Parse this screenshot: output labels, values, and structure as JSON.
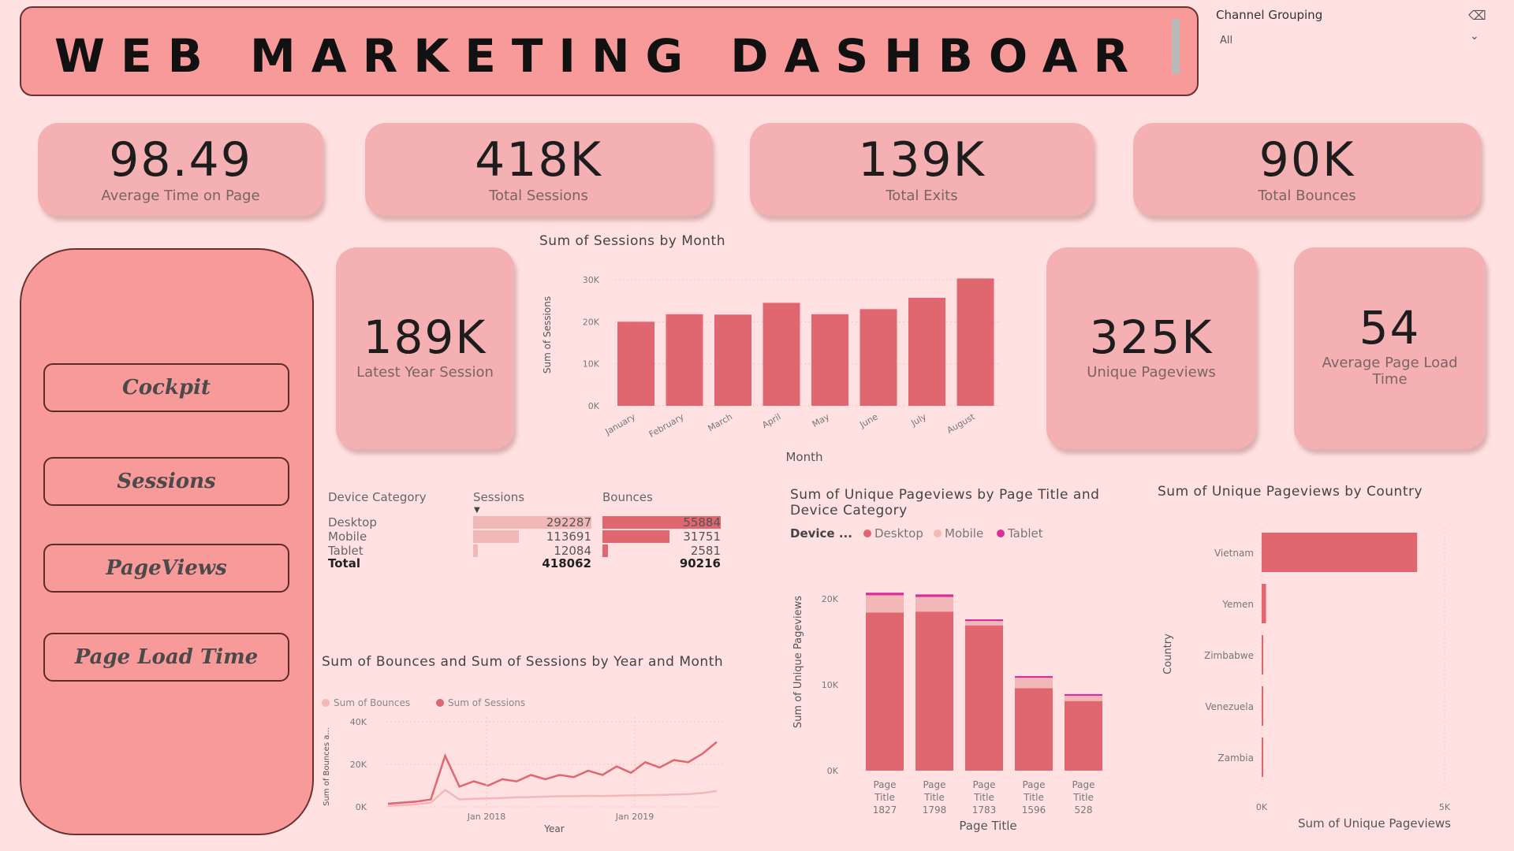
{
  "header": {
    "title": "WEB MARKETING DASHBOARD"
  },
  "slicer": {
    "title": "Channel Grouping",
    "value": "All",
    "icon": "eraser-icon",
    "chevron": "chevron-down-icon"
  },
  "kpis": [
    {
      "value": "98.49",
      "label": "Average Time on Page"
    },
    {
      "value": "418K",
      "label": "Total Sessions"
    },
    {
      "value": "139K",
      "label": "Total Exits"
    },
    {
      "value": "90K",
      "label": "Total Bounces"
    }
  ],
  "side_kpis": {
    "latest": {
      "value": "189K",
      "label": "Latest Year Session"
    },
    "unique": {
      "value": "325K",
      "label": "Unique Pageviews"
    },
    "load": {
      "value": "54",
      "label": "Average Page Load Time"
    }
  },
  "nav": [
    "Cockpit",
    "Sessions",
    "PageViews",
    "Page Load Time"
  ],
  "colors": {
    "background": "#ffe1e1",
    "panel": "#f89a9a",
    "card": "#f4b0b3",
    "bar": "#e06670",
    "desktop": "#e06670",
    "mobile": "#f2b8b8",
    "tablet": "#d6309a"
  },
  "table": {
    "headers": [
      "Device Category",
      "Sessions",
      "Bounces"
    ],
    "rows": [
      {
        "device": "Desktop",
        "sessions": "292287",
        "bounces": "55884",
        "s": 292287,
        "b": 55884
      },
      {
        "device": "Mobile",
        "sessions": "113691",
        "bounces": "31751",
        "s": 113691,
        "b": 31751
      },
      {
        "device": "Tablet",
        "sessions": "12084",
        "bounces": "2581",
        "s": 12084,
        "b": 2581
      }
    ],
    "total": {
      "device": "Total",
      "sessions": "418062",
      "bounces": "90216"
    }
  },
  "chart_data": [
    {
      "type": "bar",
      "title": "Sum of Sessions by Month",
      "xlabel": "Month",
      "ylabel": "Sum of Sessions",
      "yticks": [
        "0K",
        "10K",
        "20K",
        "30K"
      ],
      "ylim": [
        0,
        30000
      ],
      "categories": [
        "January",
        "February",
        "March",
        "April",
        "May",
        "June",
        "July",
        "August"
      ],
      "values": [
        20000,
        21800,
        21700,
        24500,
        21800,
        23000,
        25700,
        30300
      ]
    },
    {
      "type": "bar",
      "title": "Sum of Unique Pageviews by Page Title and Device Category",
      "legend_title": "Device ...",
      "xlabel": "Page Title",
      "ylabel": "Sum of Unique Pageviews",
      "yticks": [
        "0K",
        "10K",
        "20K"
      ],
      "ylim": [
        0,
        22000
      ],
      "categories": [
        "Page Title 1827",
        "Page Title 1798",
        "Page Title 1783",
        "Page Title 1596",
        "Page Title 528"
      ],
      "series": [
        {
          "name": "Desktop",
          "values": [
            18400,
            18500,
            16900,
            9600,
            8100
          ]
        },
        {
          "name": "Mobile",
          "values": [
            2000,
            1700,
            500,
            1200,
            600
          ]
        },
        {
          "name": "Tablet",
          "values": [
            300,
            300,
            200,
            200,
            200
          ]
        }
      ]
    },
    {
      "type": "bar",
      "title": "Sum of Unique Pageviews by Country",
      "xlabel": "Sum of Unique Pageviews",
      "ylabel": "Country",
      "xticks": [
        "0K",
        "5K"
      ],
      "xlim": [
        0,
        5000
      ],
      "categories": [
        "Vietnam",
        "Yemen",
        "Zimbabwe",
        "Venezuela",
        "Zambia"
      ],
      "values": [
        4250,
        120,
        30,
        25,
        20
      ]
    },
    {
      "type": "line",
      "title": "Sum of Bounces and Sum of Sessions by Year and Month",
      "xlabel": "Year",
      "ylabel": "Sum of Bounces a...",
      "yticks": [
        "0K",
        "20K",
        "40K"
      ],
      "ylim": [
        0,
        40000
      ],
      "xticks": [
        "Jan 2018",
        "Jan 2019"
      ],
      "series": [
        {
          "name": "Sum of Bounces",
          "values": [
            500,
            800,
            1200,
            2000,
            8000,
            3500,
            3800,
            4000,
            4200,
            4500,
            4600,
            4800,
            5000,
            5000,
            5200,
            5100,
            5300,
            5400,
            5500,
            5600,
            5800,
            6000,
            6500,
            7500
          ]
        },
        {
          "name": "Sum of Sessions",
          "values": [
            1500,
            2000,
            2500,
            3500,
            24000,
            9500,
            12000,
            10000,
            13000,
            12000,
            15000,
            13000,
            15000,
            14000,
            17000,
            15000,
            19000,
            16000,
            21000,
            18500,
            22000,
            21000,
            25000,
            30500
          ]
        }
      ]
    }
  ]
}
